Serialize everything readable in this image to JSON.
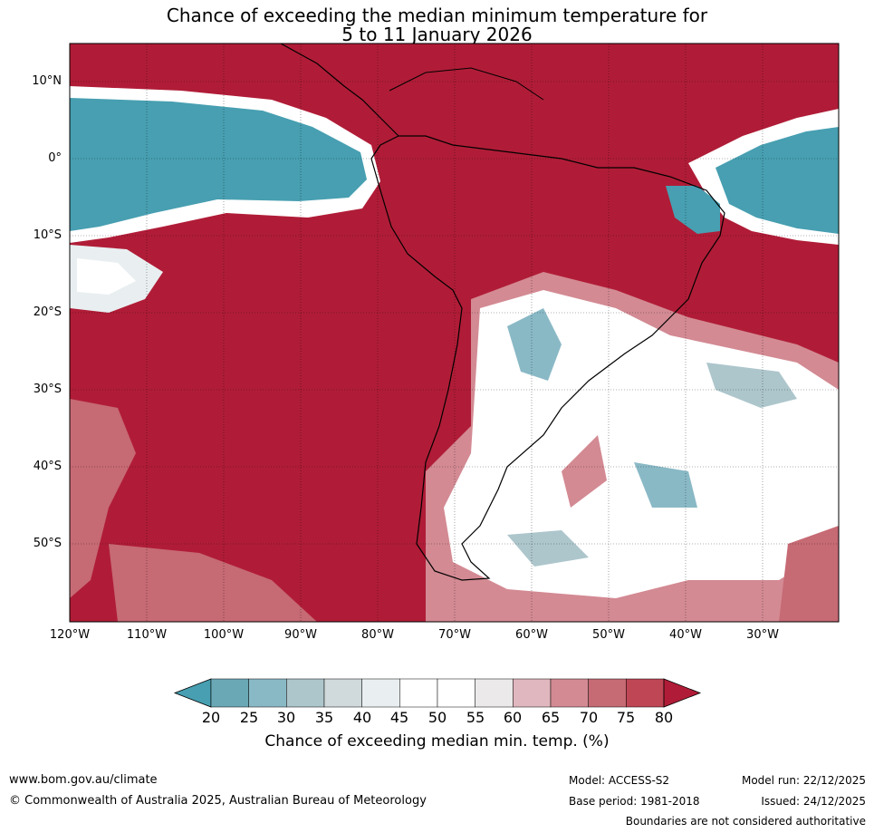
{
  "title_line1": "Chance of exceeding the median minimum temperature for",
  "title_line2": "5 to 11 January 2026",
  "lat_labels": [
    "10°N",
    "0°",
    "10°S",
    "20°S",
    "30°S",
    "40°S",
    "50°S"
  ],
  "lon_labels": [
    "120°W",
    "110°W",
    "100°W",
    "90°W",
    "80°W",
    "70°W",
    "60°W",
    "50°W",
    "40°W",
    "30°W"
  ],
  "colorbar": {
    "ticks": [
      "20",
      "25",
      "30",
      "35",
      "40",
      "45",
      "50",
      "55",
      "60",
      "65",
      "70",
      "75",
      "80"
    ],
    "colors": [
      "#479fb1",
      "#6aa8b5",
      "#8ab9c6",
      "#adc6cc",
      "#d0d9db",
      "#e9eff1",
      "#ffffff",
      "#ffffff",
      "#ebe9ea",
      "#e0b7be",
      "#d38a93",
      "#c66a74",
      "#bf4655",
      "#b01c37"
    ],
    "label": "Chance of exceeding median min. temp. (%)"
  },
  "colors": {
    "red": "#b01c37",
    "teal": "#479fb1"
  },
  "footer": {
    "website": "www.bom.gov.au/climate",
    "copyright": "© Commonwealth of Australia 2025, Australian Bureau of Meteorology",
    "model": "Model: ACCESS-S2",
    "base_period": "Base period: 1981-2018",
    "model_run": "Model run: 22/12/2025",
    "issued": "Issued: 24/12/2025",
    "disclaimer": "Boundaries are not considered authoritative"
  }
}
